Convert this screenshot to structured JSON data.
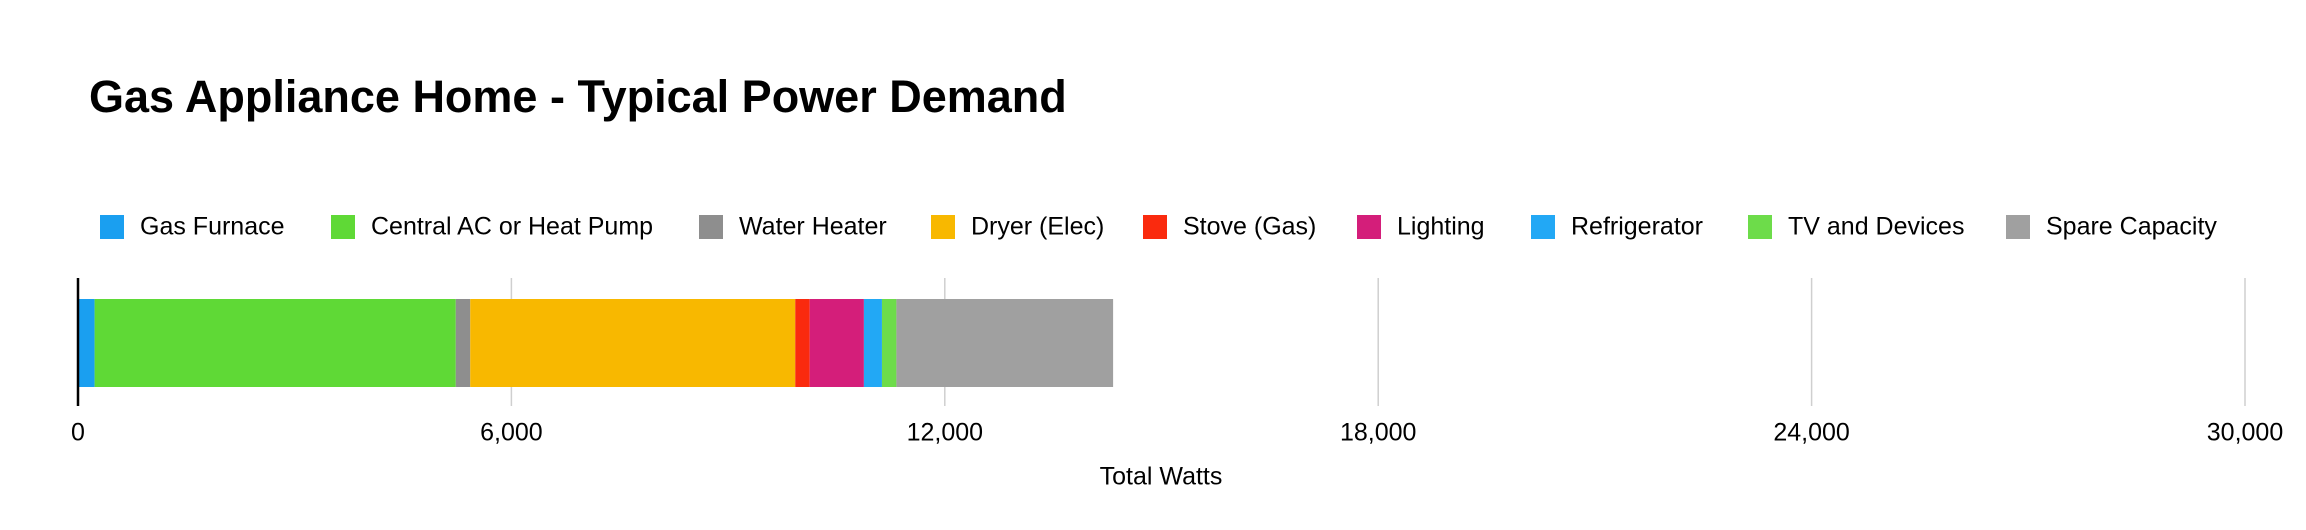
{
  "chart_data": {
    "type": "stacked-bar-horizontal",
    "title": "Gas Appliance Home - Typical Power Demand",
    "x_label": "Total Watts",
    "series": [
      {
        "name": "Gas Furnace",
        "color": "#1a9ff0",
        "values": [
          230
        ]
      },
      {
        "name": "Central AC or Heat Pump",
        "color": "#5fd936",
        "values": [
          5000
        ]
      },
      {
        "name": "Water Heater",
        "color": "#8e8e8e",
        "values": [
          200
        ]
      },
      {
        "name": "Dryer (Elec)",
        "color": "#f8b800",
        "values": [
          4500
        ]
      },
      {
        "name": "Stove (Gas)",
        "color": "#fa2a0e",
        "values": [
          200
        ]
      },
      {
        "name": "Lighting",
        "color": "#d41e7a",
        "values": [
          750
        ]
      },
      {
        "name": "Refrigerator",
        "color": "#22a8f5",
        "values": [
          250
        ]
      },
      {
        "name": "TV and Devices",
        "color": "#6ddc4a",
        "values": [
          200
        ]
      },
      {
        "name": "Spare Capacity",
        "color": "#a0a0a0",
        "values": [
          3000
        ]
      }
    ],
    "xlim": [
      0,
      30000
    ],
    "xticks": [
      0,
      {
        "value": 6000,
        "label": "6,000"
      },
      {
        "value": 12000,
        "label": "12,000"
      },
      {
        "value": 18000,
        "label": "18,000"
      },
      {
        "value": 24000,
        "label": "24,000"
      },
      {
        "value": 30000,
        "label": "30,000"
      }
    ],
    "grid": true
  }
}
